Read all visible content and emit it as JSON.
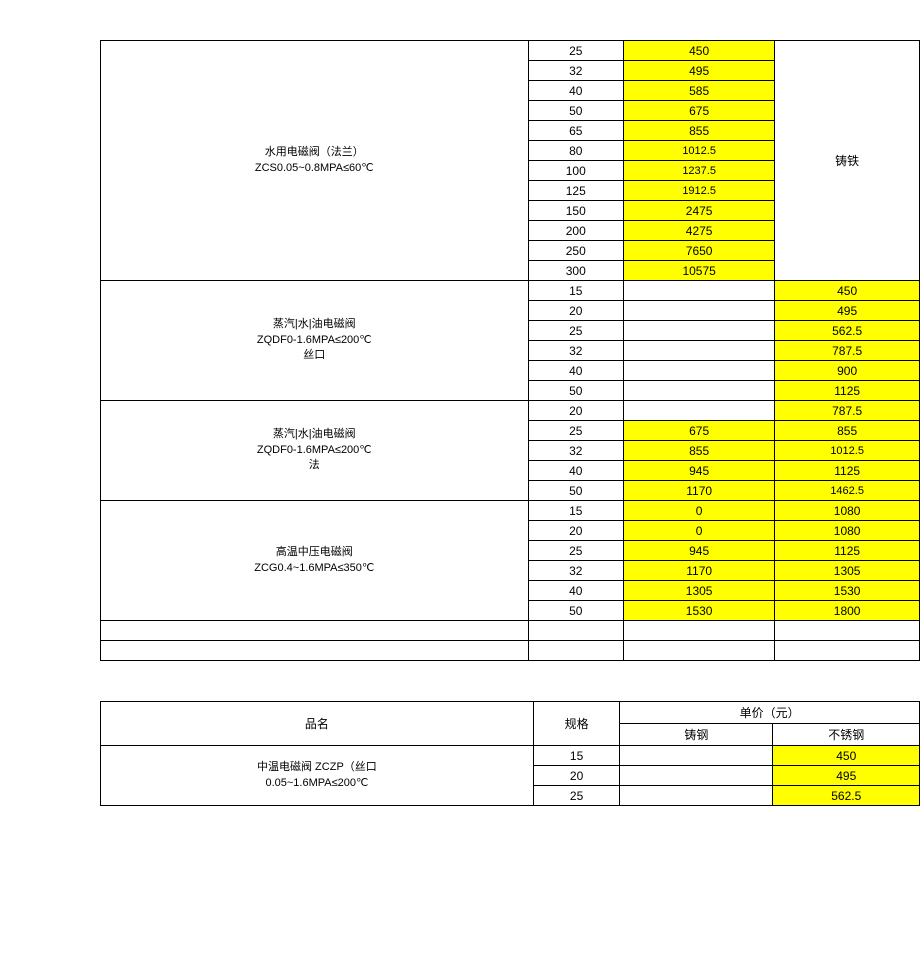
{
  "table1": {
    "section1": {
      "name": "水用电磁阀（法兰）\nZCS0.05~0.8MPA≤60℃",
      "material": "铸铁",
      "rows": [
        {
          "spec": "25",
          "price1": "450"
        },
        {
          "spec": "32",
          "price1": "495"
        },
        {
          "spec": "40",
          "price1": "585"
        },
        {
          "spec": "50",
          "price1": "675"
        },
        {
          "spec": "65",
          "price1": "855"
        },
        {
          "spec": "80",
          "price1": "1012.5"
        },
        {
          "spec": "100",
          "price1": "1237.5"
        },
        {
          "spec": "125",
          "price1": "1912.5"
        },
        {
          "spec": "150",
          "price1": "2475"
        },
        {
          "spec": "200",
          "price1": "4275"
        },
        {
          "spec": "250",
          "price1": "7650"
        },
        {
          "spec": "300",
          "price1": "10575"
        }
      ]
    },
    "section2": {
      "name": "蒸汽|水|油电磁阀\nZQDF0-1.6MPA≤200℃\n丝口",
      "rows": [
        {
          "spec": "15",
          "price2": "450"
        },
        {
          "spec": "20",
          "price2": "495"
        },
        {
          "spec": "25",
          "price2": "562.5"
        },
        {
          "spec": "32",
          "price2": "787.5"
        },
        {
          "spec": "40",
          "price2": "900"
        },
        {
          "spec": "50",
          "price2": "1125"
        }
      ]
    },
    "section3": {
      "name": "蒸汽|水|油电磁阀\nZQDF0-1.6MPA≤200℃\n法",
      "rows": [
        {
          "spec": "20",
          "price1": "",
          "price2": "787.5"
        },
        {
          "spec": "25",
          "price1": "675",
          "price2": "855"
        },
        {
          "spec": "32",
          "price1": "855",
          "price2": "1012.5"
        },
        {
          "spec": "40",
          "price1": "945",
          "price2": "1125"
        },
        {
          "spec": "50",
          "price1": "1170",
          "price2": "1462.5"
        }
      ]
    },
    "section4": {
      "name": "高温中压电磁阀\nZCG0.4~1.6MPA≤350℃",
      "rows": [
        {
          "spec": "15",
          "price1": "0",
          "price2": "1080"
        },
        {
          "spec": "20",
          "price1": "0",
          "price2": "1080"
        },
        {
          "spec": "25",
          "price1": "945",
          "price2": "1125"
        },
        {
          "spec": "32",
          "price1": "1170",
          "price2": "1305"
        },
        {
          "spec": "40",
          "price1": "1305",
          "price2": "1530"
        },
        {
          "spec": "50",
          "price1": "1530",
          "price2": "1800"
        }
      ]
    }
  },
  "table2": {
    "headers": {
      "name": "品名",
      "spec": "规格",
      "price": "单价（元）",
      "col1": "铸钢",
      "col2": "不锈钢"
    },
    "section1": {
      "name": "中温电磁阀 ZCZP（丝口\n0.05~1.6MPA≤200℃",
      "rows": [
        {
          "spec": "15",
          "price1": "",
          "price2": "450"
        },
        {
          "spec": "20",
          "price1": "",
          "price2": "495"
        },
        {
          "spec": "25",
          "price1": "",
          "price2": "562.5"
        }
      ]
    }
  }
}
